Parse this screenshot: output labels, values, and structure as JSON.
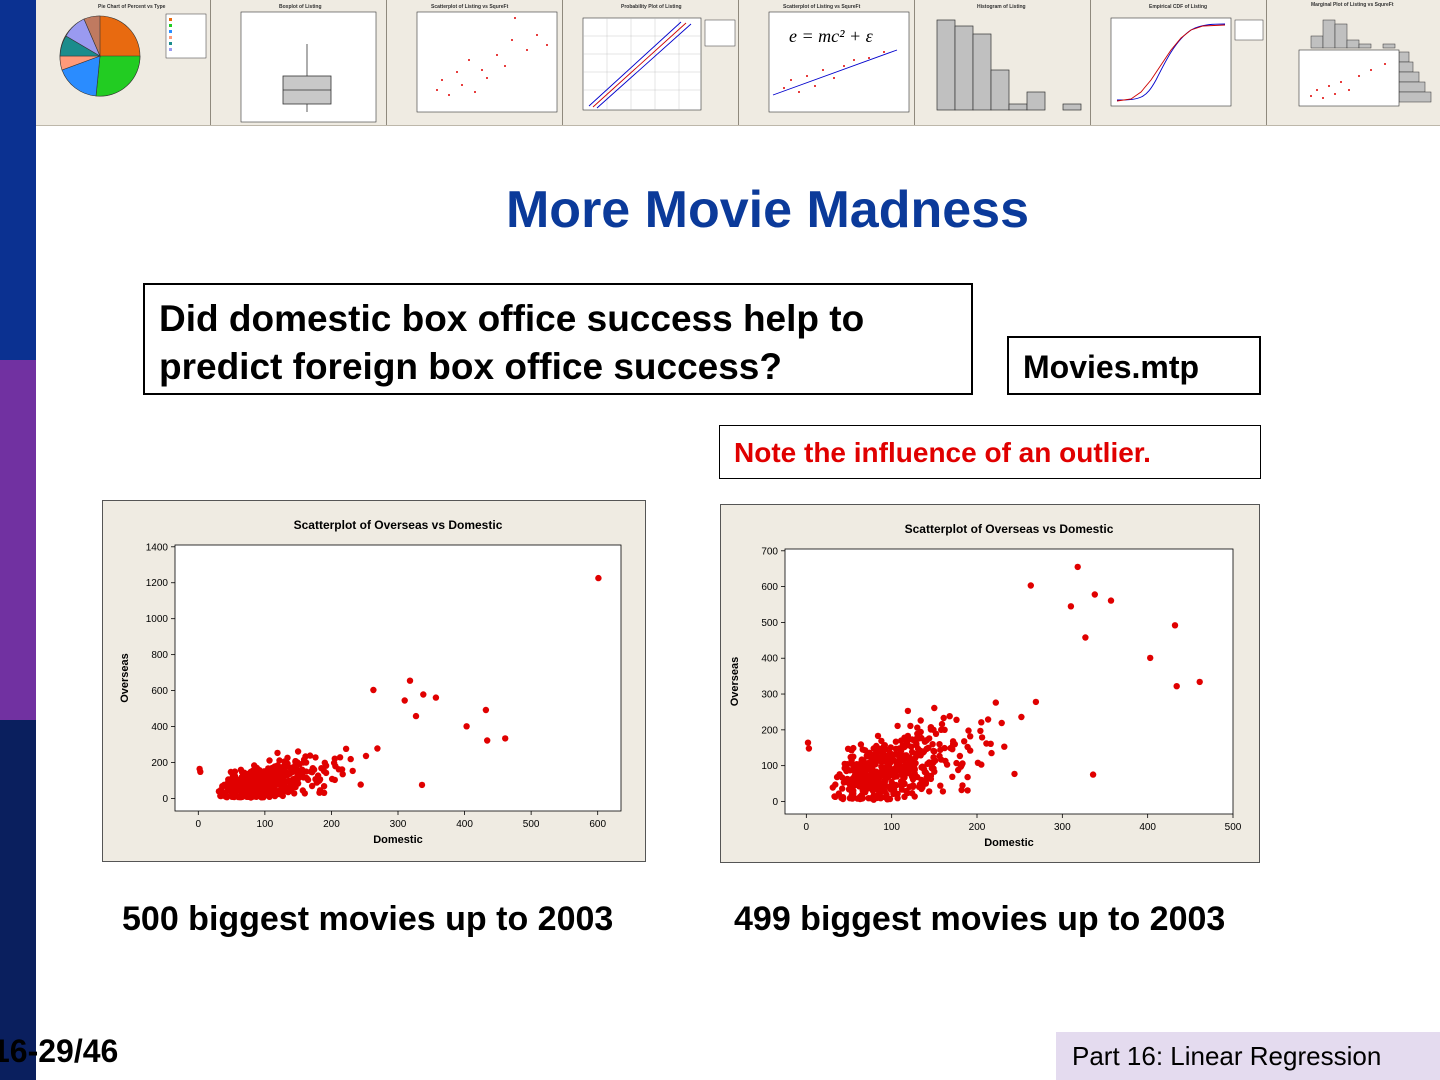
{
  "slide": {
    "title": "More Movie Madness",
    "question": "Did domestic box office success help to predict foreign box office success?",
    "file_label": "Movies.mtp",
    "note": "Note the influence of an outlier.",
    "caption_left": "500 biggest movies up to 2003",
    "caption_right": "499 biggest movies up to 2003",
    "page_number": "16-29/46",
    "footer": "Part 16: Linear Regression"
  },
  "colors": {
    "sidebar_top": "#0b3191",
    "sidebar_mid": "#7131a1",
    "sidebar_bottom": "#0a1f5e",
    "title": "#0b3a9a",
    "note": "#e00000",
    "points": "#e00000",
    "chart_bg": "#efebe2"
  },
  "banner": {
    "thumbnails": [
      {
        "kind": "pie",
        "title": "Pie Chart of Percent vs Type"
      },
      {
        "kind": "boxplot",
        "title": "Boxplot of Listing"
      },
      {
        "kind": "scatter",
        "title": "Scatterplot of Listing vs SqureFt"
      },
      {
        "kind": "probability",
        "title": "Probability Plot of Listing"
      },
      {
        "kind": "regression",
        "title": "Scatterplot of Listing vs SqureFt",
        "formula": "e = mc² + ε"
      },
      {
        "kind": "histogram",
        "title": "Histogram of Listing"
      },
      {
        "kind": "cdf",
        "title": "Empirical CDF of Listing"
      },
      {
        "kind": "marginal",
        "title": "Marginal Plot of Listing vs SqureFt"
      }
    ]
  },
  "chart_data": [
    {
      "type": "scatter",
      "title": "Scatterplot of Overseas vs Domestic",
      "xlabel": "Domestic",
      "ylabel": "Overseas",
      "xlim": [
        -35,
        635
      ],
      "ylim": [
        -70,
        1410
      ],
      "xticks": [
        0,
        100,
        200,
        300,
        400,
        500,
        600
      ],
      "yticks": [
        0,
        200,
        400,
        600,
        800,
        1000,
        1200,
        1400
      ],
      "points_count": 500,
      "notable_points": [
        {
          "x": 601,
          "y": 1226
        },
        {
          "x": 263,
          "y": 603
        },
        {
          "x": 318,
          "y": 655
        },
        {
          "x": 338,
          "y": 578
        },
        {
          "x": 357,
          "y": 561
        },
        {
          "x": 432,
          "y": 492
        },
        {
          "x": 403,
          "y": 401
        },
        {
          "x": 434,
          "y": 322
        },
        {
          "x": 461,
          "y": 334
        },
        {
          "x": 336,
          "y": 75
        },
        {
          "x": 310,
          "y": 545
        },
        {
          "x": 327,
          "y": 458
        },
        {
          "x": 2,
          "y": 164
        },
        {
          "x": 3,
          "y": 148
        }
      ]
    },
    {
      "type": "scatter",
      "title": "Scatterplot of Overseas vs Domestic",
      "xlabel": "Domestic",
      "ylabel": "Overseas",
      "xlim": [
        -25,
        500
      ],
      "ylim": [
        -35,
        705
      ],
      "xticks": [
        0,
        100,
        200,
        300,
        400,
        500
      ],
      "yticks": [
        0,
        100,
        200,
        300,
        400,
        500,
        600,
        700
      ],
      "points_count": 499,
      "notable_points": [
        {
          "x": 263,
          "y": 603
        },
        {
          "x": 318,
          "y": 655
        },
        {
          "x": 338,
          "y": 578
        },
        {
          "x": 357,
          "y": 561
        },
        {
          "x": 432,
          "y": 492
        },
        {
          "x": 403,
          "y": 401
        },
        {
          "x": 434,
          "y": 322
        },
        {
          "x": 461,
          "y": 334
        },
        {
          "x": 336,
          "y": 75
        },
        {
          "x": 310,
          "y": 545
        },
        {
          "x": 327,
          "y": 458
        },
        {
          "x": 2,
          "y": 164
        },
        {
          "x": 3,
          "y": 148
        }
      ]
    }
  ]
}
